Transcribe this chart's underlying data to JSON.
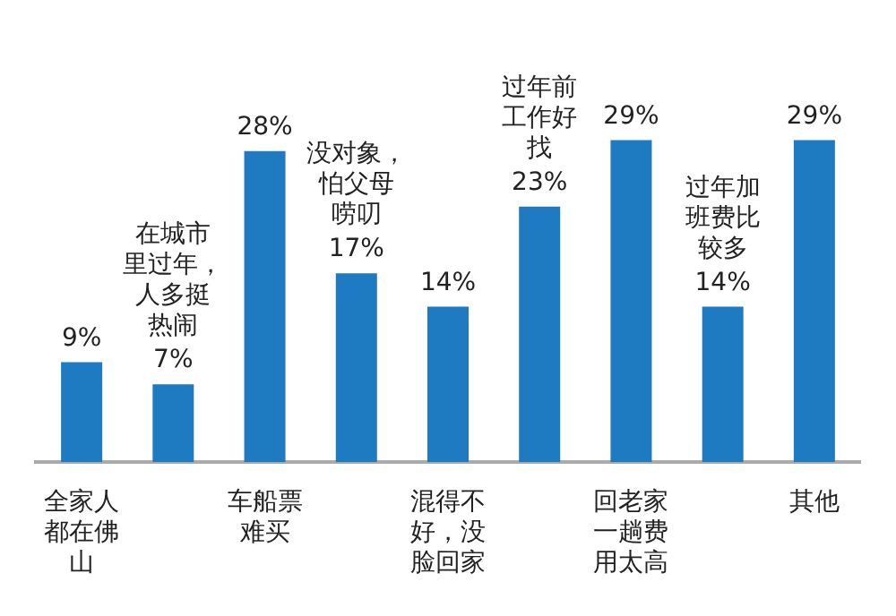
{
  "chart_data": {
    "type": "bar",
    "categories": [
      "全家人都在佛山",
      "在城市里过年，人多挺热闹",
      "车船票难买",
      "没对象，怕父母唠叨",
      "混得不好，没脸回家",
      "过年前工作好找",
      "回老家一趟费用太高",
      "过年加班费比较多",
      "其他"
    ],
    "values": [
      9,
      7,
      28,
      17,
      14,
      23,
      29,
      14,
      29
    ],
    "value_labels": [
      "9%",
      "7%",
      "28%",
      "17%",
      "14%",
      "23%",
      "29%",
      "14%",
      "29%"
    ],
    "color": "#1f7bc1",
    "grid": false,
    "legend": false
  }
}
